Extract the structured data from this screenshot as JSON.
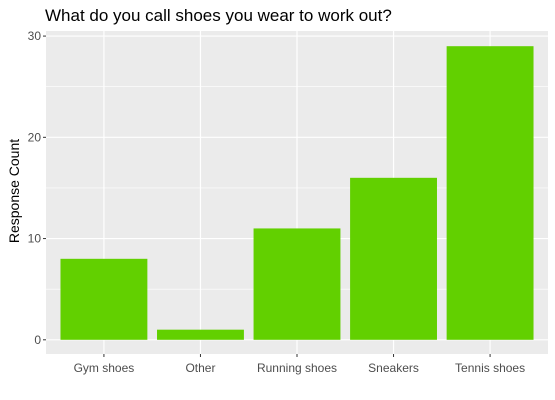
{
  "chart_data": {
    "type": "bar",
    "title": "What do you call shoes you wear to work out?",
    "xlabel": "",
    "ylabel": "Response Count",
    "categories": [
      "Gym shoes",
      "Other",
      "Running shoes",
      "Sneakers",
      "Tennis shoes"
    ],
    "values": [
      8,
      1,
      11,
      16,
      29
    ],
    "ylim": [
      0,
      30
    ],
    "yticks": [
      0,
      10,
      20,
      30
    ],
    "grid": true,
    "legend": "none",
    "colors": {
      "bar": "#62d000",
      "panel": "#ebebeb",
      "grid": "#ffffff",
      "text": "#4d4d4d"
    }
  }
}
